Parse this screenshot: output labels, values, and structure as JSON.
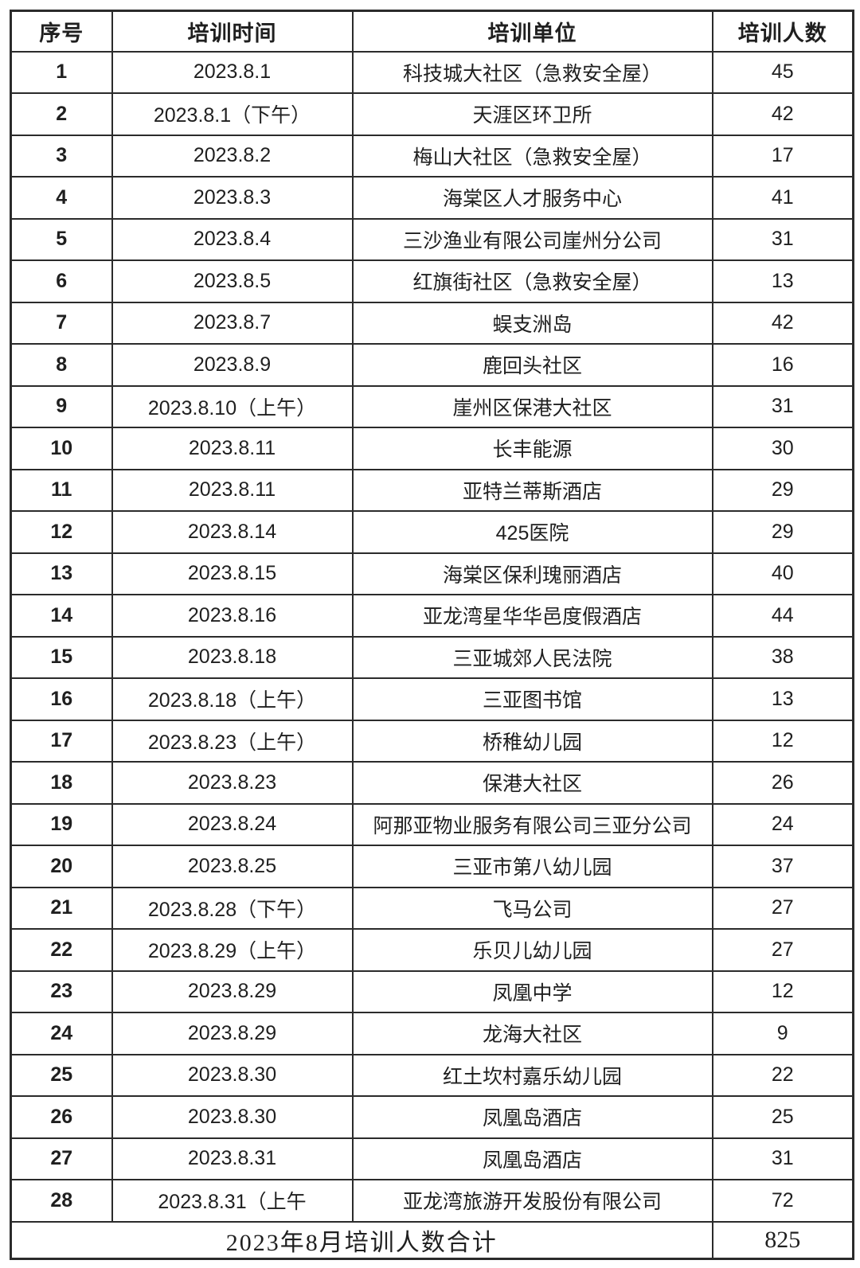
{
  "table": {
    "headers": [
      "序号",
      "培训时间",
      "培训单位",
      "培训人数"
    ],
    "rows": [
      [
        "1",
        "2023.8.1",
        "科技城大社区（急救安全屋）",
        "45"
      ],
      [
        "2",
        "2023.8.1（下午）",
        "天涯区环卫所",
        "42"
      ],
      [
        "3",
        "2023.8.2",
        "梅山大社区（急救安全屋）",
        "17"
      ],
      [
        "4",
        "2023.8.3",
        "海棠区人才服务中心",
        "41"
      ],
      [
        "5",
        "2023.8.4",
        "三沙渔业有限公司崖州分公司",
        "31"
      ],
      [
        "6",
        "2023.8.5",
        "红旗街社区（急救安全屋）",
        "13"
      ],
      [
        "7",
        "2023.8.7",
        "蜈支洲岛",
        "42"
      ],
      [
        "8",
        "2023.8.9",
        "鹿回头社区",
        "16"
      ],
      [
        "9",
        "2023.8.10（上午）",
        "崖州区保港大社区",
        "31"
      ],
      [
        "10",
        "2023.8.11",
        "长丰能源",
        "30"
      ],
      [
        "11",
        "2023.8.11",
        "亚特兰蒂斯酒店",
        "29"
      ],
      [
        "12",
        "2023.8.14",
        "425医院",
        "29"
      ],
      [
        "13",
        "2023.8.15",
        "海棠区保利瑰丽酒店",
        "40"
      ],
      [
        "14",
        "2023.8.16",
        "亚龙湾星华华邑度假酒店",
        "44"
      ],
      [
        "15",
        "2023.8.18",
        "三亚城郊人民法院",
        "38"
      ],
      [
        "16",
        "2023.8.18（上午）",
        "三亚图书馆",
        "13"
      ],
      [
        "17",
        "2023.8.23（上午）",
        "桥稚幼儿园",
        "12"
      ],
      [
        "18",
        "2023.8.23",
        "保港大社区",
        "26"
      ],
      [
        "19",
        "2023.8.24",
        "阿那亚物业服务有限公司三亚分公司",
        "24"
      ],
      [
        "20",
        "2023.8.25",
        "三亚市第八幼儿园",
        "37"
      ],
      [
        "21",
        "2023.8.28（下午）",
        "飞马公司",
        "27"
      ],
      [
        "22",
        "2023.8.29（上午）",
        "乐贝儿幼儿园",
        "27"
      ],
      [
        "23",
        "2023.8.29",
        "凤凰中学",
        "12"
      ],
      [
        "24",
        "2023.8.29",
        "龙海大社区",
        "9"
      ],
      [
        "25",
        "2023.8.30",
        "红土坎村嘉乐幼儿园",
        "22"
      ],
      [
        "26",
        "2023.8.30",
        "凤凰岛酒店",
        "25"
      ],
      [
        "27",
        "2023.8.31",
        "凤凰岛酒店",
        "31"
      ],
      [
        "28",
        "2023.8.31（上午",
        "亚龙湾旅游开发股份有限公司",
        "72"
      ]
    ],
    "footer": {
      "label": "2023年8月培训人数合计",
      "total": "825"
    }
  },
  "colors": {
    "border": "#2b2b2b",
    "text": "#1f1f1f",
    "background": "#ffffff"
  }
}
